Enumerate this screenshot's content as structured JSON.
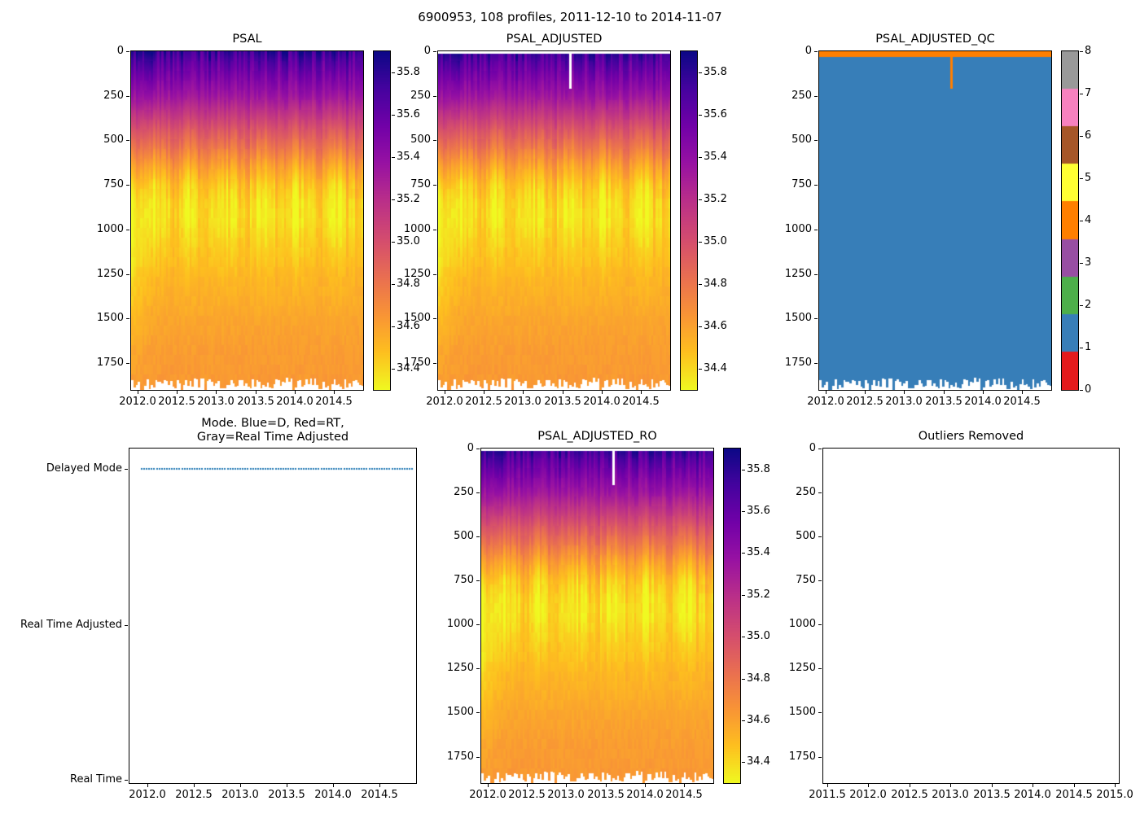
{
  "figure": {
    "title": "6900953, 108 profiles, 2011-12-10 to 2014-11-07"
  },
  "chart_data": [
    {
      "id": "psal",
      "type": "heatmap",
      "title": "PSAL",
      "x_tick_labels": [
        "2012.0",
        "2012.5",
        "2013.0",
        "2013.5",
        "2014.0",
        "2014.5"
      ],
      "x_range": [
        2011.92,
        2014.87
      ],
      "y_tick_labels": [
        "0",
        "250",
        "500",
        "750",
        "1000",
        "1250",
        "1500",
        "1750"
      ],
      "y_range": [
        0,
        1900
      ],
      "y_inverted": true,
      "n_profiles": 108,
      "colormap": "plasma_reversed",
      "color_limits": [
        34.3,
        35.9
      ],
      "colorbar_tick_labels": [
        "35.8",
        "35.6",
        "35.4",
        "35.2",
        "35.0",
        "34.8",
        "34.6",
        "34.4"
      ],
      "profile_anchors": {
        "depth_m": [
          0,
          60,
          150,
          250,
          350,
          450,
          550,
          650,
          750,
          850,
          950,
          1100,
          1300,
          1500,
          1700,
          1900
        ],
        "psal": [
          35.78,
          35.65,
          35.5,
          35.35,
          35.15,
          34.95,
          34.78,
          34.6,
          34.46,
          34.39,
          34.38,
          34.44,
          34.52,
          34.58,
          34.62,
          34.64
        ]
      },
      "bottom_depth_range": [
        1830,
        1900
      ],
      "surface_gap_depth": 0,
      "gap_profile": null
    },
    {
      "id": "psal_adjusted",
      "type": "heatmap",
      "title": "PSAL_ADJUSTED",
      "x_tick_labels": [
        "2012.0",
        "2012.5",
        "2013.0",
        "2013.5",
        "2014.0",
        "2014.5"
      ],
      "x_range": [
        2011.92,
        2014.87
      ],
      "y_tick_labels": [
        "0",
        "250",
        "500",
        "750",
        "1000",
        "1250",
        "1500",
        "1750"
      ],
      "y_range": [
        0,
        1900
      ],
      "y_inverted": true,
      "n_profiles": 108,
      "colormap": "plasma_reversed",
      "color_limits": [
        34.3,
        35.9
      ],
      "colorbar_tick_labels": [
        "35.8",
        "35.6",
        "35.4",
        "35.2",
        "35.0",
        "34.8",
        "34.6",
        "34.4"
      ],
      "profile_anchors": {
        "depth_m": [
          0,
          60,
          150,
          250,
          350,
          450,
          550,
          650,
          750,
          850,
          950,
          1100,
          1300,
          1500,
          1700,
          1900
        ],
        "psal": [
          35.78,
          35.65,
          35.5,
          35.35,
          35.15,
          34.95,
          34.78,
          34.6,
          34.46,
          34.39,
          34.38,
          34.44,
          34.52,
          34.58,
          34.62,
          34.64
        ]
      },
      "bottom_depth_range": [
        1830,
        1900
      ],
      "surface_gap_depth": 12,
      "gap_profile": {
        "time": 2013.6,
        "max_depth": 210
      }
    },
    {
      "id": "psal_adjusted_qc",
      "type": "qc_heatmap",
      "title": "PSAL_ADJUSTED_QC",
      "x_tick_labels": [
        "2012.0",
        "2012.5",
        "2013.0",
        "2013.5",
        "2014.0",
        "2014.5"
      ],
      "x_range": [
        2011.92,
        2014.87
      ],
      "y_tick_labels": [
        "0",
        "250",
        "500",
        "750",
        "1000",
        "1250",
        "1500",
        "1750"
      ],
      "y_range": [
        0,
        1900
      ],
      "y_inverted": true,
      "n_profiles": 108,
      "qc_flag_colors": [
        "#e41a1c",
        "#377eb8",
        "#4daf4a",
        "#984ea3",
        "#ff7f00",
        "#ffff33",
        "#a65628",
        "#f781bf",
        "#999999"
      ],
      "colorbar_tick_labels": [
        "8",
        "7",
        "6",
        "5",
        "4",
        "3",
        "2",
        "1",
        "0"
      ],
      "colorbar_range": [
        0,
        8
      ],
      "default_flag": 1,
      "surface_flag": {
        "flag": 4,
        "max_depth": 32
      },
      "flagged_profile": {
        "time": 2013.6,
        "flag": 4,
        "max_depth": 210
      },
      "bottom_depth_range": [
        1830,
        1900
      ]
    },
    {
      "id": "mode",
      "type": "scatter",
      "title_lines": [
        "Mode. Blue=D, Red=RT,",
        "Gray=Real Time Adjusted"
      ],
      "y_categories": [
        "Delayed Mode",
        "Real Time Adjusted",
        "Real Time"
      ],
      "x_tick_labels": [
        "2012.0",
        "2012.5",
        "2013.0",
        "2013.5",
        "2014.0",
        "2014.5"
      ],
      "x_range": [
        2011.81,
        2014.89
      ],
      "mode_color_legend": {
        "blue": "D",
        "red": "RT",
        "gray": "Real Time Adjusted"
      },
      "series": [
        {
          "name": "Delayed Mode",
          "category": "Delayed Mode",
          "color": "#1f77b4",
          "style": "dotted",
          "x_start": 2011.94,
          "x_end": 2014.85,
          "n_points": 108
        }
      ]
    },
    {
      "id": "psal_adjusted_ro",
      "type": "heatmap",
      "title": "PSAL_ADJUSTED_RO",
      "x_tick_labels": [
        "2012.0",
        "2012.5",
        "2013.0",
        "2013.5",
        "2014.0",
        "2014.5"
      ],
      "x_range": [
        2011.92,
        2014.87
      ],
      "y_tick_labels": [
        "0",
        "250",
        "500",
        "750",
        "1000",
        "1250",
        "1500",
        "1750"
      ],
      "y_range": [
        0,
        1900
      ],
      "y_inverted": true,
      "n_profiles": 108,
      "colormap": "plasma_reversed",
      "color_limits": [
        34.3,
        35.9
      ],
      "colorbar_tick_labels": [
        "35.8",
        "35.6",
        "35.4",
        "35.2",
        "35.0",
        "34.8",
        "34.6",
        "34.4"
      ],
      "profile_anchors": {
        "depth_m": [
          0,
          60,
          150,
          250,
          350,
          450,
          550,
          650,
          750,
          850,
          950,
          1100,
          1300,
          1500,
          1700,
          1900
        ],
        "psal": [
          35.78,
          35.65,
          35.5,
          35.35,
          35.15,
          34.95,
          34.78,
          34.6,
          34.46,
          34.39,
          34.38,
          34.44,
          34.52,
          34.58,
          34.62,
          34.64
        ]
      },
      "bottom_depth_range": [
        1830,
        1900
      ],
      "surface_gap_depth": 12,
      "gap_profile": {
        "time": 2013.6,
        "max_depth": 210
      }
    },
    {
      "id": "outliers_removed",
      "type": "empty",
      "title": "Outliers Removed",
      "x_tick_labels": [
        "2011.5",
        "2012.0",
        "2012.5",
        "2013.0",
        "2013.5",
        "2014.0",
        "2014.5",
        "2015.0"
      ],
      "x_range": [
        2011.45,
        2015.05
      ],
      "y_tick_labels": [
        "0",
        "250",
        "500",
        "750",
        "1000",
        "1250",
        "1500",
        "1750"
      ],
      "y_range": [
        0,
        1900
      ],
      "y_inverted": true
    }
  ]
}
